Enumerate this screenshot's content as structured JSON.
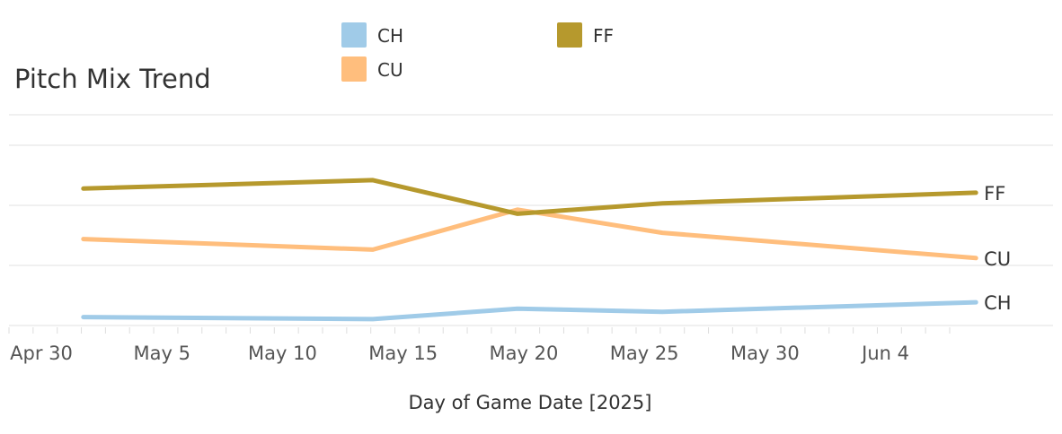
{
  "chart_data": {
    "type": "line",
    "title": "Pitch Mix Trend",
    "xlabel": "Day of Game Date [2025]",
    "ylabel": "",
    "x_ticks": [
      "Apr 30",
      "May 5",
      "May 10",
      "May 15",
      "May 20",
      "May 25",
      "May 30",
      "Jun 4"
    ],
    "x_range": [
      "2025-04-30",
      "2025-06-08"
    ],
    "ylim": [
      0,
      1
    ],
    "grid": true,
    "legend_position": "top",
    "legend": [
      {
        "name": "CH",
        "color": "#a0cbe8"
      },
      {
        "name": "FF",
        "color": "#b6992d"
      },
      {
        "name": "CU",
        "color": "#ffbe7d"
      }
    ],
    "series": [
      {
        "name": "CH",
        "color": "#a0cbe8",
        "x": [
          "2025-05-01",
          "2025-05-13",
          "2025-05-19",
          "2025-05-25",
          "2025-06-07"
        ],
        "y": [
          0.04,
          0.03,
          0.08,
          0.065,
          0.11
        ]
      },
      {
        "name": "CU",
        "color": "#ffbe7d",
        "x": [
          "2025-05-01",
          "2025-05-13",
          "2025-05-19",
          "2025-05-25",
          "2025-06-07"
        ],
        "y": [
          0.41,
          0.36,
          0.55,
          0.44,
          0.32
        ]
      },
      {
        "name": "FF",
        "color": "#b6992d",
        "x": [
          "2025-05-01",
          "2025-05-13",
          "2025-05-19",
          "2025-05-25",
          "2025-06-07"
        ],
        "y": [
          0.65,
          0.69,
          0.53,
          0.58,
          0.63
        ]
      }
    ]
  }
}
